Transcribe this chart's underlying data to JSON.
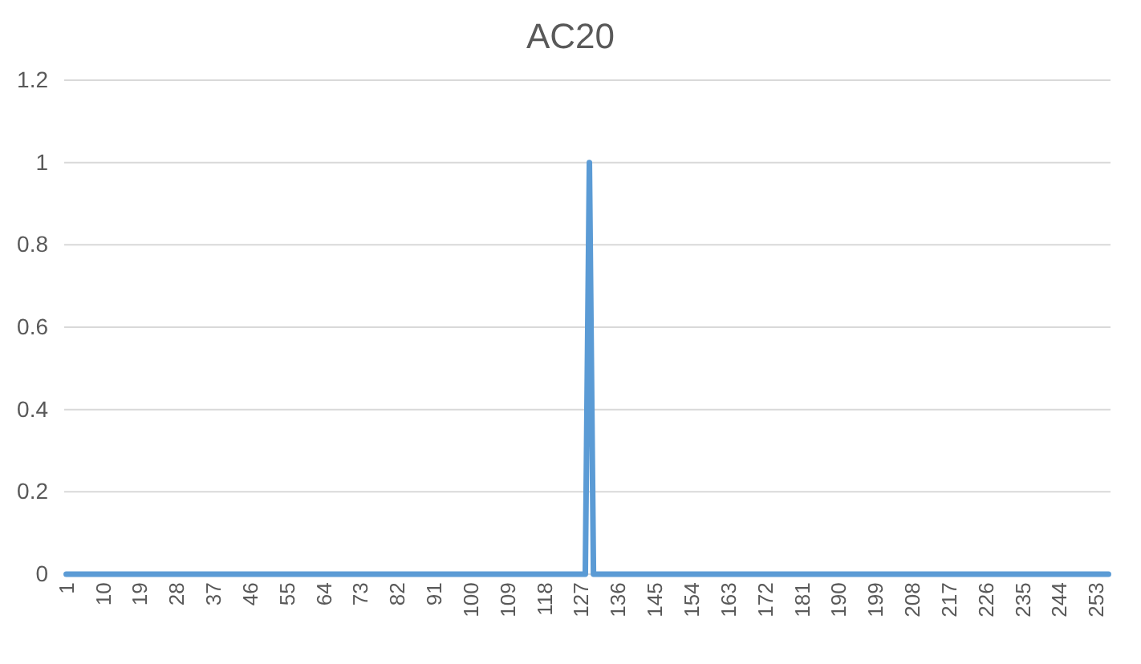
{
  "chart_data": {
    "type": "line",
    "title": "AC20",
    "x": [
      1,
      128,
      129,
      130,
      256
    ],
    "series": [
      {
        "color": "#5b9bd5",
        "values": [
          0,
          0,
          1,
          0,
          0
        ]
      }
    ],
    "xlim": [
      0.5,
      256.5
    ],
    "xticks": [
      1,
      10,
      19,
      28,
      37,
      46,
      55,
      64,
      73,
      82,
      91,
      100,
      109,
      118,
      127,
      136,
      145,
      154,
      163,
      172,
      181,
      190,
      199,
      208,
      217,
      226,
      235,
      244,
      253
    ],
    "ylim": [
      0,
      1.2
    ],
    "yticks": [
      0,
      0.2,
      0.4,
      0.6,
      0.8,
      1,
      1.2
    ],
    "grid": "y",
    "marker": "none",
    "line_style": "solid"
  }
}
